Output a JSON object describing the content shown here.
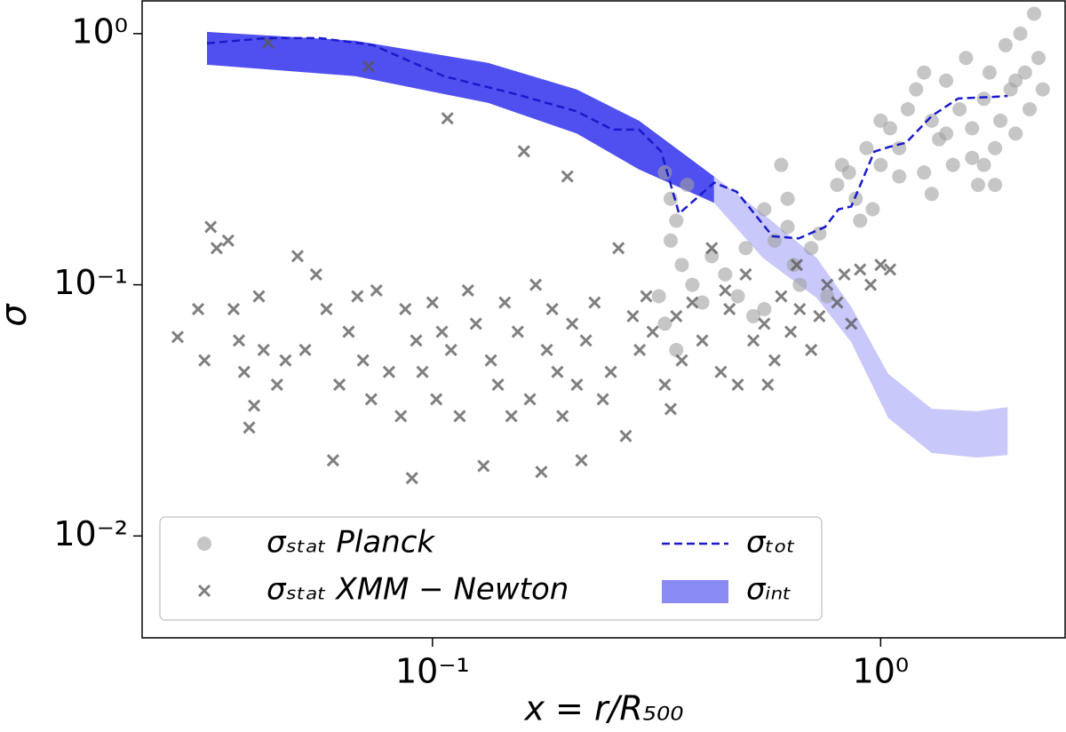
{
  "chart_data": {
    "type": "scatter",
    "xlabel": "x = r/R₅₀₀",
    "ylabel": "σ",
    "xscale": "log",
    "yscale": "log",
    "xlim": [
      0.0225,
      2.58
    ],
    "ylim": [
      0.00393,
      1.35
    ],
    "xticks": [
      {
        "value": 0.1,
        "label": "10⁻¹"
      },
      {
        "value": 1,
        "label": "10⁰"
      }
    ],
    "yticks": [
      {
        "value": 0.01,
        "label": "10⁻²"
      },
      {
        "value": 0.1,
        "label": "10⁻¹"
      },
      {
        "value": 1,
        "label": "10⁰"
      }
    ],
    "legend": "lower left",
    "series": [
      {
        "name": "σₛₜₐₜ Planck",
        "kind": "scatter",
        "marker": "o",
        "color": "#a0a0a0",
        "x": [
          0.33,
          0.34,
          0.35,
          0.34,
          0.36,
          0.32,
          0.33,
          0.35,
          0.37,
          0.38,
          0.4,
          0.42,
          0.45,
          0.48,
          0.52,
          0.55,
          0.58,
          0.6,
          0.62,
          0.64,
          0.66,
          0.7,
          0.73,
          0.76,
          0.8,
          0.82,
          0.85,
          0.88,
          0.9,
          0.93,
          0.96,
          1.0,
          1.05,
          1.1,
          1.15,
          1.2,
          1.25,
          1.3,
          1.35,
          1.4,
          1.45,
          1.5,
          1.55,
          1.6,
          1.65,
          1.7,
          1.75,
          1.8,
          1.85,
          1.9,
          1.95,
          2.0,
          2.05,
          2.1,
          2.15,
          2.2,
          2.25,
          2.3,
          1.25,
          1.6,
          1.3,
          0.62,
          0.55,
          0.5,
          1.0,
          1.1,
          1.4,
          1.7,
          2.0,
          1.8
        ],
        "values": [
          0.28,
          0.22,
          0.18,
          0.15,
          0.12,
          0.09,
          0.07,
          0.055,
          0.25,
          0.1,
          0.085,
          0.13,
          0.11,
          0.09,
          0.075,
          0.08,
          0.15,
          0.3,
          0.17,
          0.12,
          0.1,
          0.14,
          0.16,
          0.09,
          0.25,
          0.3,
          0.28,
          0.22,
          0.18,
          0.35,
          0.2,
          0.3,
          0.42,
          0.35,
          0.5,
          0.6,
          0.28,
          0.45,
          0.38,
          0.65,
          0.3,
          0.5,
          0.8,
          0.42,
          0.25,
          0.55,
          0.7,
          0.35,
          0.45,
          0.9,
          0.6,
          0.4,
          1.0,
          0.7,
          0.5,
          1.2,
          0.8,
          0.6,
          0.7,
          0.32,
          0.23,
          0.22,
          0.2,
          0.14,
          0.45,
          0.27,
          0.4,
          0.3,
          0.65,
          0.25
        ]
      },
      {
        "name": "σₛₜₐₜ XMM − Newton",
        "kind": "scatter",
        "marker": "x",
        "color": "#555555",
        "x": [
          0.027,
          0.03,
          0.031,
          0.032,
          0.033,
          0.035,
          0.036,
          0.037,
          0.038,
          0.039,
          0.04,
          0.041,
          0.042,
          0.043,
          0.045,
          0.047,
          0.05,
          0.052,
          0.055,
          0.058,
          0.06,
          0.062,
          0.065,
          0.068,
          0.07,
          0.072,
          0.073,
          0.075,
          0.08,
          0.085,
          0.087,
          0.09,
          0.092,
          0.095,
          0.1,
          0.102,
          0.105,
          0.108,
          0.11,
          0.115,
          0.12,
          0.125,
          0.13,
          0.135,
          0.14,
          0.145,
          0.15,
          0.155,
          0.16,
          0.165,
          0.17,
          0.175,
          0.18,
          0.185,
          0.19,
          0.195,
          0.2,
          0.205,
          0.21,
          0.215,
          0.22,
          0.23,
          0.24,
          0.25,
          0.26,
          0.27,
          0.28,
          0.29,
          0.3,
          0.31,
          0.33,
          0.34,
          0.35,
          0.36,
          0.38,
          0.4,
          0.42,
          0.44,
          0.46,
          0.48,
          0.5,
          0.52,
          0.55,
          0.58,
          0.6,
          0.63,
          0.66,
          0.7,
          0.73,
          0.76,
          0.8,
          0.83,
          0.86,
          0.9,
          0.95,
          1.0,
          1.05,
          0.65,
          0.56,
          0.45
        ],
        "values": [
          0.062,
          0.08,
          0.05,
          0.17,
          0.14,
          0.15,
          0.08,
          0.06,
          0.045,
          0.027,
          0.033,
          0.09,
          0.055,
          0.92,
          0.04,
          0.05,
          0.13,
          0.055,
          0.11,
          0.08,
          0.02,
          0.04,
          0.065,
          0.09,
          0.05,
          0.74,
          0.035,
          0.095,
          0.045,
          0.03,
          0.08,
          0.017,
          0.06,
          0.045,
          0.085,
          0.035,
          0.065,
          0.46,
          0.055,
          0.03,
          0.095,
          0.07,
          0.019,
          0.05,
          0.04,
          0.085,
          0.03,
          0.065,
          0.34,
          0.035,
          0.1,
          0.018,
          0.055,
          0.08,
          0.045,
          0.03,
          0.27,
          0.07,
          0.04,
          0.02,
          0.06,
          0.085,
          0.035,
          0.045,
          0.14,
          0.025,
          0.075,
          0.055,
          0.09,
          0.065,
          0.04,
          0.032,
          0.075,
          0.05,
          0.085,
          0.06,
          0.14,
          0.045,
          0.08,
          0.04,
          0.11,
          0.06,
          0.07,
          0.05,
          0.09,
          0.065,
          0.08,
          0.055,
          0.075,
          0.1,
          0.085,
          0.11,
          0.07,
          0.115,
          0.1,
          0.12,
          0.115,
          0.12,
          0.04,
          0.095
        ]
      },
      {
        "name": "σₜₒₜ",
        "kind": "line",
        "color": "#1a1acc",
        "x": [
          0.0314,
          0.0427,
          0.056,
          0.0737,
          0.106,
          0.153,
          0.21,
          0.252,
          0.289,
          0.324,
          0.355,
          0.425,
          0.477,
          0.574,
          0.657,
          0.752,
          0.806,
          0.86,
          0.968,
          1.04,
          1.14,
          1.3,
          1.49,
          1.79,
          1.92
        ],
        "values": [
          0.915,
          0.96,
          0.96,
          0.9,
          0.677,
          0.575,
          0.49,
          0.415,
          0.415,
          0.339,
          0.192,
          0.255,
          0.235,
          0.156,
          0.153,
          0.17,
          0.2,
          0.205,
          0.339,
          0.353,
          0.368,
          0.47,
          0.552,
          0.56,
          0.565
        ]
      },
      {
        "name": "σᵢₙₜ",
        "kind": "band",
        "color": "#8a8af5",
        "segments": [
          {
            "color": "#5050f0",
            "x": [
              0.0314,
              0.0673,
              0.133,
              0.21,
              0.289,
              0.425
            ],
            "lower": [
              0.752,
              0.677,
              0.53,
              0.4,
              0.288,
              0.212
            ],
            "upper": [
              1.016,
              0.937,
              0.765,
              0.599,
              0.45,
              0.27
            ]
          },
          {
            "color": "#c8c8fa",
            "x": [
              0.425,
              0.546,
              0.72,
              0.86,
              1.04,
              1.3,
              1.64,
              1.92
            ],
            "lower": [
              0.212,
              0.128,
              0.0886,
              0.059,
              0.0295,
              0.0214,
              0.0205,
              0.021
            ],
            "upper": [
              0.27,
              0.192,
              0.128,
              0.0817,
              0.0442,
              0.0321,
              0.0314,
              0.0326
            ]
          }
        ]
      }
    ]
  }
}
